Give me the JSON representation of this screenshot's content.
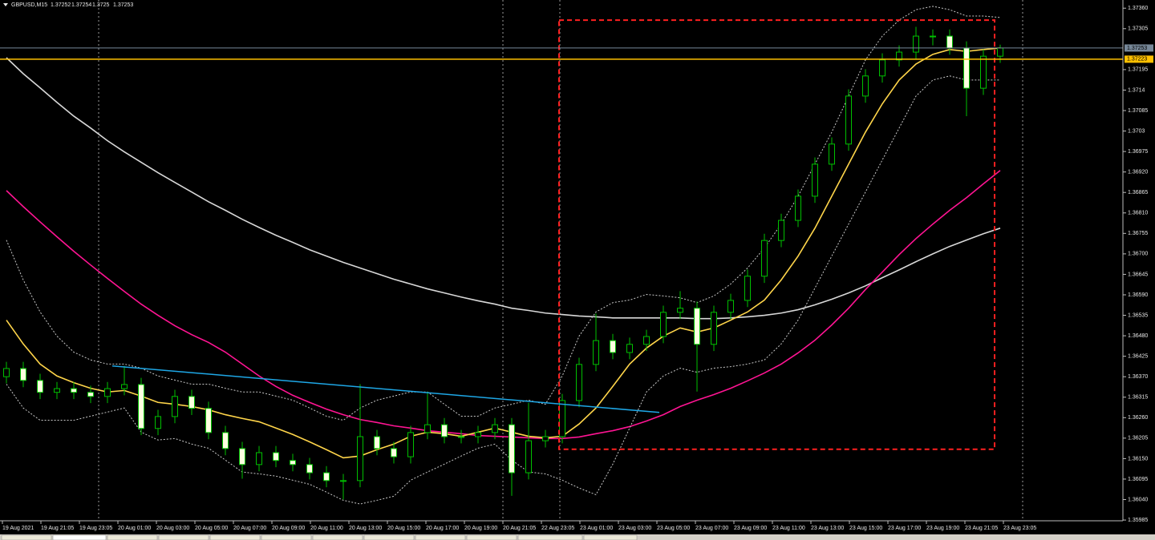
{
  "chart_data": {
    "type": "candlestick",
    "title": "GBPUSD,M15",
    "quote": [
      1.37252,
      1.37254,
      1.3725,
      1.37253
    ],
    "ylim": [
      1.35983,
      1.37382
    ],
    "yticks": [
      {
        "value": 1.3736,
        "label": "1.37360"
      },
      1.37305,
      1.37195,
      1.3714,
      1.37085,
      1.3703,
      1.36975,
      {
        "value": 1.3692,
        "label": "1.36920"
      },
      1.36865,
      {
        "value": 1.3681,
        "label": "1.36810"
      },
      1.36755,
      {
        "value": 1.367,
        "label": "1.36700"
      },
      1.36645,
      {
        "value": 1.3659,
        "label": "1.36590"
      },
      1.36535,
      {
        "value": 1.3648,
        "label": "1.36480"
      },
      1.36425,
      {
        "value": 1.3637,
        "label": "1.36370"
      },
      1.36315,
      {
        "value": 1.3626,
        "label": "1.36260"
      },
      1.36205,
      {
        "value": 1.3615,
        "label": "1.36150"
      },
      1.36095,
      {
        "value": 1.3604,
        "label": "1.36040"
      },
      1.35985
    ],
    "time_labels": [
      "19 Aug 2021",
      "19 Aug 21:05",
      "19 Aug 23:05",
      "20 Aug 01:00",
      "20 Aug 03:00",
      "20 Aug 05:00",
      "20 Aug 07:00",
      "20 Aug 09:00",
      "20 Aug 11:00",
      "20 Aug 13:00",
      "20 Aug 15:00",
      "20 Aug 17:00",
      "20 Aug 19:00",
      "20 Aug 21:05",
      "22 Aug 23:05",
      "23 Aug 01:00",
      "23 Aug 03:00",
      "23 Aug 05:00",
      "23 Aug 07:00",
      "23 Aug 09:00",
      "23 Aug 11:00",
      "23 Aug 13:00",
      "23 Aug 15:00",
      "23 Aug 17:00",
      "23 Aug 19:00",
      "23 Aug 21:05",
      "23 Aug 23:05"
    ],
    "open": [
      1.3637,
      1.36392,
      1.3636,
      1.36328,
      1.36338,
      1.36328,
      1.36317,
      1.36338,
      1.36349,
      1.36231,
      1.36263,
      1.36317,
      1.36285,
      1.3622,
      1.36177,
      1.36134,
      1.36166,
      1.36145,
      1.36134,
      1.36112,
      1.36091,
      1.36091,
      1.36209,
      1.36177,
      1.36155,
      1.3622,
      1.36241,
      1.36209,
      1.36209,
      1.3622,
      1.36241,
      1.36112,
      1.36198,
      1.36209,
      1.36306,
      1.36403,
      1.36467,
      1.36435,
      1.36457,
      1.36478,
      1.36543,
      1.36554,
      1.36457,
      1.36543,
      1.36575,
      1.3664,
      1.36736,
      1.3679,
      1.36855,
      1.36941,
      1.36995,
      1.37124,
      1.37178,
      1.37221,
      1.37242,
      1.37285,
      1.37285,
      1.37253,
      1.37145,
      1.37231
    ],
    "high": [
      1.3641,
      1.3641,
      1.36378,
      1.36356,
      1.36356,
      1.36346,
      1.36356,
      1.36399,
      1.36367,
      1.36281,
      1.36335,
      1.36335,
      1.36303,
      1.36238,
      1.36195,
      1.36184,
      1.36184,
      1.36163,
      1.36152,
      1.3613,
      1.36109,
      1.3635,
      1.36227,
      1.36195,
      1.36238,
      1.3633,
      1.36259,
      1.36227,
      1.36238,
      1.36259,
      1.36259,
      1.363,
      1.36227,
      1.36324,
      1.36421,
      1.3654,
      1.36485,
      1.36475,
      1.36496,
      1.36561,
      1.366,
      1.36572,
      1.36561,
      1.36593,
      1.36658,
      1.36754,
      1.36808,
      1.36873,
      1.36959,
      1.37013,
      1.37142,
      1.37196,
      1.37239,
      1.3726,
      1.3731,
      1.37303,
      1.37303,
      1.37271,
      1.37249,
      1.37262
    ],
    "low": [
      1.36352,
      1.36342,
      1.3631,
      1.3631,
      1.3631,
      1.36299,
      1.36299,
      1.3632,
      1.36213,
      1.36213,
      1.36245,
      1.36267,
      1.36202,
      1.36159,
      1.36096,
      1.36116,
      1.36127,
      1.36116,
      1.36094,
      1.36073,
      1.3604,
      1.36073,
      1.36159,
      1.36137,
      1.36137,
      1.36202,
      1.36191,
      1.36191,
      1.36191,
      1.36202,
      1.3605,
      1.36094,
      1.3618,
      1.36191,
      1.36288,
      1.36385,
      1.36417,
      1.36417,
      1.36439,
      1.3646,
      1.36525,
      1.3633,
      1.36439,
      1.36525,
      1.36557,
      1.36622,
      1.36718,
      1.36772,
      1.36837,
      1.36923,
      1.36977,
      1.37106,
      1.3716,
      1.37203,
      1.37224,
      1.3726,
      1.37235,
      1.3707,
      1.37127,
      1.37213
    ],
    "close": [
      1.36392,
      1.3636,
      1.36328,
      1.36338,
      1.36328,
      1.36317,
      1.36338,
      1.36349,
      1.36231,
      1.36263,
      1.36317,
      1.36285,
      1.3622,
      1.36177,
      1.36134,
      1.36166,
      1.36145,
      1.36134,
      1.36112,
      1.36091,
      1.36091,
      1.36209,
      1.36177,
      1.36155,
      1.3622,
      1.36241,
      1.36209,
      1.36209,
      1.3622,
      1.36241,
      1.36112,
      1.36198,
      1.36209,
      1.36306,
      1.36403,
      1.36467,
      1.36435,
      1.36457,
      1.36478,
      1.36543,
      1.36554,
      1.36457,
      1.36543,
      1.36575,
      1.3664,
      1.36736,
      1.3679,
      1.36855,
      1.36941,
      1.36995,
      1.37124,
      1.37178,
      1.37221,
      1.37242,
      1.37285,
      1.37285,
      1.37253,
      1.37145,
      1.37231,
      1.37253
    ],
    "bull_color": "#00c000",
    "bear_color": "#ffffe0",
    "overlays": [
      {
        "color": "#d8d8d8",
        "dashed": false,
        "values": [
          1.37227,
          1.37184,
          1.37146,
          1.37107,
          1.3707,
          1.37038,
          1.37004,
          1.36974,
          1.36946,
          1.36918,
          1.36892,
          1.36866,
          1.3684,
          1.36817,
          1.36793,
          1.36771,
          1.3675,
          1.36731,
          1.36711,
          1.36694,
          1.36677,
          1.36662,
          1.36647,
          1.36632,
          1.36619,
          1.36606,
          1.36595,
          1.36584,
          1.36574,
          1.36565,
          1.36554,
          1.36548,
          1.36541,
          1.36537,
          1.36533,
          1.36531,
          1.36528,
          1.36528,
          1.36528,
          1.36528,
          1.36528,
          1.36526,
          1.36526,
          1.36528,
          1.36531,
          1.36535,
          1.36541,
          1.3655,
          1.36563,
          1.36578,
          1.36595,
          1.36614,
          1.36636,
          1.36657,
          1.36679,
          1.367,
          1.3672,
          1.36737,
          1.36754,
          1.36769
        ]
      },
      {
        "color": "#ff1493",
        "dashed": false,
        "values": [
          1.3687,
          1.36827,
          1.36786,
          1.36746,
          1.36707,
          1.3667,
          1.36634,
          1.36599,
          1.36565,
          1.36535,
          1.36507,
          1.36483,
          1.36462,
          1.36436,
          1.36404,
          1.36372,
          1.36344,
          1.3632,
          1.36301,
          1.36283,
          1.36268,
          1.36255,
          1.36247,
          1.36238,
          1.36232,
          1.36225,
          1.36221,
          1.36217,
          1.36212,
          1.3621,
          1.36208,
          1.36206,
          1.36204,
          1.36204,
          1.36208,
          1.36217,
          1.36225,
          1.36236,
          1.36251,
          1.36268,
          1.3629,
          1.36307,
          1.36322,
          1.36339,
          1.36359,
          1.3638,
          1.36404,
          1.36434,
          1.36468,
          1.36509,
          1.36554,
          1.36604,
          1.36651,
          1.36698,
          1.36741,
          1.3678,
          1.36817,
          1.36851,
          1.36888,
          1.36924
        ]
      },
      {
        "color": "#ffd54a",
        "dashed": false,
        "values": [
          1.36522,
          1.36458,
          1.36404,
          1.36372,
          1.36354,
          1.36339,
          1.36329,
          1.36333,
          1.36318,
          1.36301,
          1.36296,
          1.3629,
          1.36281,
          1.36268,
          1.36258,
          1.36249,
          1.36232,
          1.36215,
          1.36195,
          1.36174,
          1.36152,
          1.36157,
          1.36174,
          1.36189,
          1.3621,
          1.36221,
          1.36217,
          1.3621,
          1.36221,
          1.36232,
          1.36221,
          1.3621,
          1.36206,
          1.3621,
          1.36243,
          1.36286,
          1.36344,
          1.36404,
          1.36447,
          1.36479,
          1.36501,
          1.3649,
          1.36501,
          1.36522,
          1.36544,
          1.36576,
          1.3663,
          1.36694,
          1.36769,
          1.36855,
          1.36941,
          1.37027,
          1.37103,
          1.37167,
          1.3721,
          1.37236,
          1.37249,
          1.37244,
          1.37249,
          1.37253
        ]
      },
      {
        "color": "#c8c8c8",
        "dashed": true,
        "values": [
          1.36737,
          1.3663,
          1.36544,
          1.36479,
          1.36436,
          1.36415,
          1.36404,
          1.36404,
          1.36393,
          1.36372,
          1.36361,
          1.3635,
          1.3635,
          1.36339,
          1.36329,
          1.36329,
          1.36318,
          1.36307,
          1.36286,
          1.36264,
          1.36253,
          1.36286,
          1.36307,
          1.36318,
          1.36329,
          1.36329,
          1.36296,
          1.36264,
          1.36264,
          1.36286,
          1.36296,
          1.36307,
          1.36296,
          1.36372,
          1.36479,
          1.36544,
          1.36569,
          1.36576,
          1.36591,
          1.36587,
          1.36582,
          1.36569,
          1.36587,
          1.36619,
          1.36662,
          1.36716,
          1.3678,
          1.36855,
          1.36941,
          1.37027,
          1.37124,
          1.37221,
          1.37285,
          1.37328,
          1.37356,
          1.37365,
          1.37356,
          1.37339,
          1.37339,
          1.37335
        ]
      },
      {
        "color": "#c8c8c8",
        "dashed": true,
        "values": [
          1.3635,
          1.36286,
          1.36253,
          1.36253,
          1.36253,
          1.36264,
          1.36275,
          1.36286,
          1.36221,
          1.362,
          1.36204,
          1.36189,
          1.36178,
          1.36146,
          1.36114,
          1.36109,
          1.36103,
          1.36092,
          1.36081,
          1.3606,
          1.36038,
          1.36028,
          1.36038,
          1.36049,
          1.36092,
          1.36114,
          1.36135,
          1.36157,
          1.36178,
          1.36189,
          1.36146,
          1.36114,
          1.36109,
          1.36092,
          1.36071,
          1.36053,
          1.36135,
          1.36232,
          1.36329,
          1.36372,
          1.36393,
          1.36382,
          1.36393,
          1.36397,
          1.36404,
          1.36415,
          1.36458,
          1.36522,
          1.36608,
          1.36694,
          1.3678,
          1.36866,
          1.36952,
          1.37038,
          1.37124,
          1.37167,
          1.37178,
          1.37167,
          1.37167,
          1.37167
        ]
      }
    ],
    "price_lines": [
      {
        "value": 1.37253,
        "color": "#778899",
        "text_color": "#000000"
      },
      {
        "value": 1.37223,
        "color": "#ffc000",
        "text_color": "#000000"
      }
    ],
    "trendline": {
      "start": 1.36399,
      "end": 1.36274,
      "color": "#1ea7e6"
    },
    "rectangle": {
      "top": 1.37328,
      "bottom": 1.36175,
      "color": "#ff2020"
    }
  }
}
